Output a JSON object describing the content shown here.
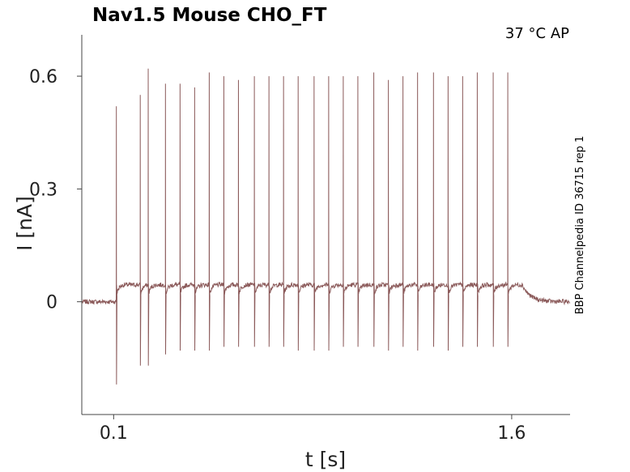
{
  "chart_data": {
    "type": "line",
    "title": "Nav1.5  Mouse  CHO_FT",
    "condition_label": "37 °C  AP",
    "source_note": "BBP Channelpedia ID 36715 rep 1",
    "xlabel": "t [s]",
    "ylabel": "I [nA]",
    "xlim": [
      -0.02,
      1.82
    ],
    "ylim": [
      -0.3,
      0.71
    ],
    "x_ticks": [
      0.1,
      1.6
    ],
    "x_tick_labels": [
      "0.1",
      "1.6"
    ],
    "y_ticks": [
      0.6,
      0.3,
      0
    ],
    "y_tick_labels": [
      "0.6",
      "0.3",
      "0"
    ],
    "grid": false,
    "line_color": "#8b5a5a",
    "stimulus_window": [
      0.11,
      1.64
    ],
    "baseline_current": 0.0,
    "plateau_current": 0.045,
    "spikes": {
      "times": [
        0.11,
        0.23,
        0.295,
        0.35,
        0.405,
        0.46,
        0.515,
        0.57,
        0.63,
        0.685,
        0.74,
        0.795,
        0.855,
        0.91,
        0.965,
        1.02,
        1.08,
        1.135,
        1.19,
        1.245,
        1.305,
        1.36,
        1.415,
        1.47,
        1.53,
        1.585
      ],
      "peaks": [
        0.52,
        0.62,
        0.58,
        0.58,
        0.57,
        0.61,
        0.6,
        0.59,
        0.6,
        0.6,
        0.6,
        0.6,
        0.6,
        0.6,
        0.6,
        0.6,
        0.61,
        0.59,
        0.6,
        0.61,
        0.61,
        0.6,
        0.6,
        0.61,
        0.61,
        0.61
      ],
      "troughs": [
        -0.22,
        -0.17,
        -0.14,
        -0.13,
        -0.13,
        -0.13,
        -0.12,
        -0.12,
        -0.12,
        -0.12,
        -0.12,
        -0.13,
        -0.13,
        -0.13,
        -0.12,
        -0.12,
        -0.12,
        -0.13,
        -0.12,
        -0.13,
        -0.12,
        -0.13,
        -0.12,
        -0.12,
        -0.12,
        -0.12
      ]
    },
    "extra_spike": {
      "time": 0.2,
      "peak": 0.55,
      "trough": -0.17
    }
  }
}
